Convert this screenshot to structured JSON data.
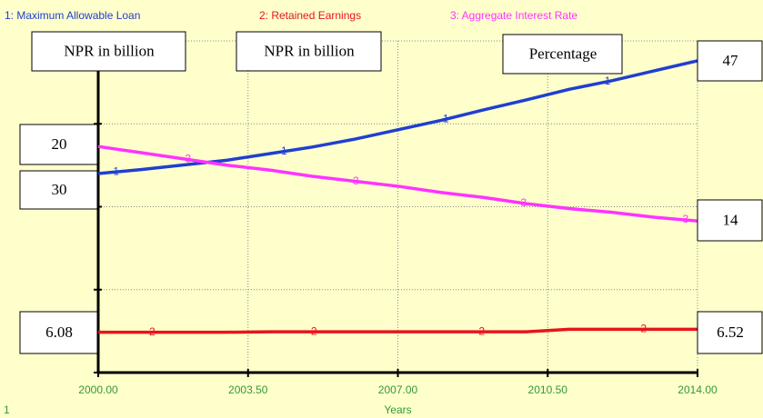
{
  "chart_data": {
    "type": "line",
    "x": [
      2000,
      2001,
      2002,
      2003,
      2004,
      2005,
      2006,
      2007,
      2008,
      2009,
      2010,
      2011,
      2012,
      2013,
      2014
    ],
    "xlim": [
      2000,
      2014
    ],
    "xticks": [
      {
        "value": 2000,
        "label": "2000.00"
      },
      {
        "value": 2003.5,
        "label": "2003.50"
      },
      {
        "value": 2007,
        "label": "2007.00"
      },
      {
        "value": 2010.5,
        "label": "2010.50"
      },
      {
        "value": 2014,
        "label": "2014.00"
      }
    ],
    "xlabel": "Years",
    "ylim": [
      0,
      50
    ],
    "yticks": [
      0,
      12.5,
      25,
      37.5,
      50
    ],
    "y2lim": [
      1.8,
      28.5
    ],
    "grid": true,
    "series": [
      {
        "name": "1: Maximum Allowable Loan",
        "marker": "1",
        "color": "#1f3fd0",
        "values": [
          30,
          30.6,
          31.3,
          32.0,
          33.0,
          34.0,
          35.2,
          36.6,
          38.0,
          39.6,
          41.1,
          42.7,
          44.0,
          45.5,
          47
        ]
      },
      {
        "name": "2: Retained Earnings",
        "marker": "2",
        "color": "#e8141b",
        "values": [
          6.08,
          6.08,
          6.08,
          6.08,
          6.15,
          6.15,
          6.15,
          6.15,
          6.15,
          6.15,
          6.15,
          6.52,
          6.52,
          6.52,
          6.52
        ]
      },
      {
        "name": "3: Aggregate Interest Rate",
        "marker": "3",
        "color": "#ff33ff",
        "axis": "y2",
        "values": [
          20,
          19.5,
          19.0,
          18.5,
          18.1,
          17.6,
          17.2,
          16.8,
          16.3,
          15.9,
          15.4,
          15.0,
          14.7,
          14.3,
          14.0
        ]
      }
    ],
    "annotations": [
      "NPR in billion",
      "NPR in billion",
      "Percentage",
      "47",
      "20",
      "30",
      "14",
      "6.08",
      "6.52"
    ],
    "page_label": "1"
  }
}
